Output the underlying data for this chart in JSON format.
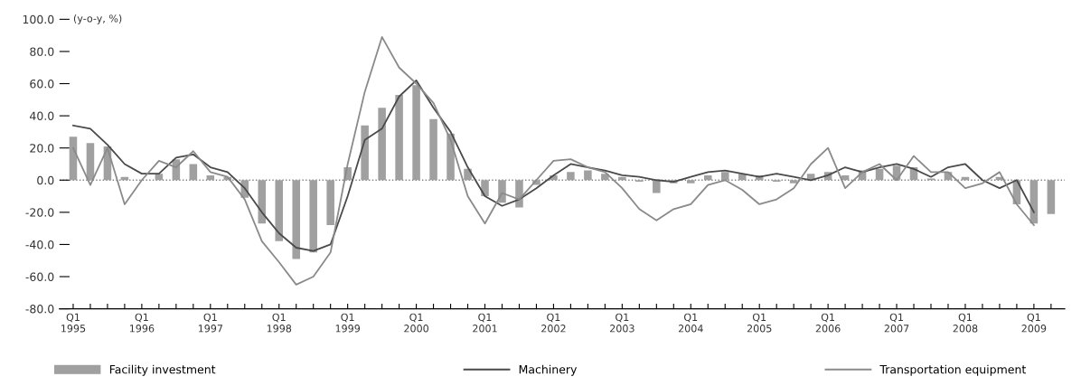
{
  "chart_data": {
    "type": "bar",
    "ylabel": "(y-o-y, %)",
    "categories": [
      "Q1\n1995",
      null,
      null,
      null,
      "Q1\n1996",
      null,
      null,
      null,
      "Q1\n1997",
      null,
      null,
      null,
      "Q1\n1998",
      null,
      null,
      null,
      "Q1\n1999",
      null,
      null,
      null,
      "Q1\n2000",
      null,
      null,
      null,
      "Q1\n2001",
      null,
      null,
      null,
      "Q1\n2002",
      null,
      null,
      null,
      "Q1\n2003",
      null,
      null,
      null,
      "Q1\n2004",
      null,
      null,
      null,
      "Q1\n2005",
      null,
      null,
      null,
      "Q1\n2006",
      null,
      null,
      null,
      "Q1\n2007",
      null,
      null,
      null,
      "Q1\n2008",
      null,
      null,
      null,
      "Q1\n2009",
      null
    ],
    "series": [
      {
        "name": "Facility investment",
        "color": "#a0a0a0",
        "values": [
          27,
          23,
          21,
          2,
          null,
          4,
          13,
          10,
          3,
          2,
          -11,
          -27,
          -38,
          -49,
          -45,
          -28,
          8,
          34,
          45,
          53,
          59,
          38,
          29,
          7,
          -10,
          -14,
          -17,
          -3,
          3,
          5,
          6,
          4,
          2,
          -1,
          -8,
          -2,
          -2,
          3,
          5,
          4,
          3,
          -1,
          -2,
          4,
          5,
          3,
          6,
          7,
          9,
          8,
          1,
          5,
          2,
          null,
          2,
          -15,
          -27,
          -21
        ]
      },
      {
        "name": "Machinery",
        "type": "line",
        "color": "#4a4a4a",
        "values": [
          34,
          32,
          22,
          10,
          4,
          4,
          14,
          16,
          8,
          5,
          -5,
          -20,
          -33,
          -42,
          -44,
          -40,
          -10,
          25,
          32,
          52,
          62,
          45,
          30,
          8,
          -10,
          -16,
          -12,
          -5,
          3,
          10,
          8,
          6,
          3,
          2,
          0,
          -1,
          2,
          5,
          6,
          4,
          2,
          4,
          2,
          0,
          3,
          8,
          5,
          8,
          10,
          7,
          2,
          8,
          10,
          0,
          -5,
          0,
          -20,
          null
        ]
      },
      {
        "name": "Transportation equipment",
        "type": "line",
        "color": "#8a8a8a",
        "values": [
          20,
          -3,
          20,
          -15,
          0,
          12,
          8,
          18,
          5,
          2,
          -12,
          -38,
          -51,
          -65,
          -60,
          -45,
          10,
          55,
          89,
          70,
          60,
          48,
          25,
          -10,
          -27,
          -8,
          -12,
          0,
          12,
          13,
          8,
          5,
          -5,
          -18,
          -25,
          -18,
          -15,
          -3,
          0,
          -6,
          -15,
          -12,
          -5,
          10,
          20,
          -5,
          5,
          10,
          0,
          15,
          5,
          5,
          -5,
          -2,
          5,
          -15,
          -28,
          null
        ]
      }
    ],
    "ylim": [
      -80,
      100
    ],
    "yticks": [
      {
        "value": -80,
        "label": "-80.0"
      },
      {
        "value": -60,
        "label": "-60.0"
      },
      {
        "value": -40,
        "label": "-40.0"
      },
      {
        "value": -20,
        "label": "-20.0"
      },
      {
        "value": 0,
        "label": "0.0"
      },
      {
        "value": 20,
        "label": "20.0"
      },
      {
        "value": 40,
        "label": "40.0"
      },
      {
        "value": 60,
        "label": "60.0"
      },
      {
        "value": 80,
        "label": "80.0"
      },
      {
        "value": 100,
        "label": "100.0"
      }
    ],
    "ref_lines": [
      {
        "axis": "y",
        "value": 0,
        "color": "#808080",
        "line_style": "dotted"
      }
    ],
    "grid": false,
    "legend": "bottom"
  }
}
